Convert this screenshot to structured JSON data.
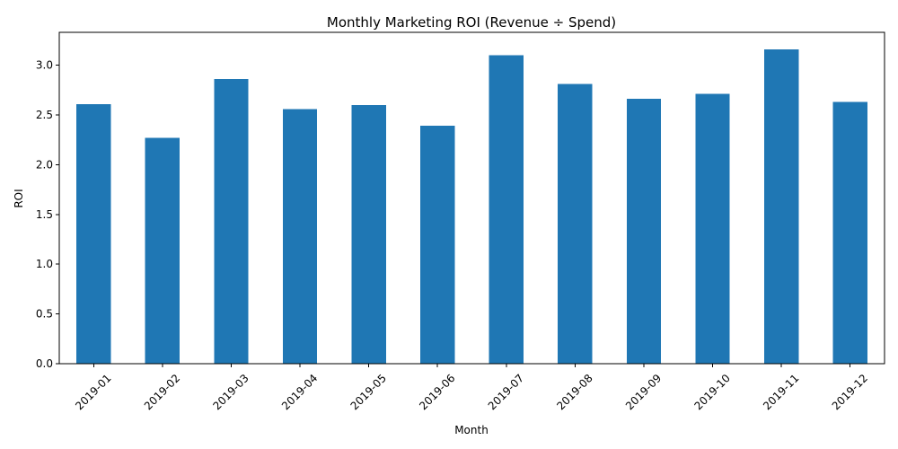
{
  "chart_data": {
    "type": "bar",
    "title": "Monthly Marketing ROI (Revenue ÷ Spend)",
    "xlabel": "Month",
    "ylabel": "ROI",
    "categories": [
      "2019-01",
      "2019-02",
      "2019-03",
      "2019-04",
      "2019-05",
      "2019-06",
      "2019-07",
      "2019-08",
      "2019-09",
      "2019-10",
      "2019-11",
      "2019-12"
    ],
    "values": [
      2.61,
      2.27,
      2.86,
      2.56,
      2.6,
      2.39,
      3.1,
      2.81,
      2.66,
      2.71,
      3.16,
      2.63
    ],
    "ylim": [
      0,
      3.33
    ],
    "yticks": [
      0.0,
      0.5,
      1.0,
      1.5,
      2.0,
      2.5,
      3.0
    ],
    "ytick_labels": [
      "0.0",
      "0.5",
      "1.0",
      "1.5",
      "2.0",
      "2.5",
      "3.0"
    ],
    "grid": false,
    "legend": "none",
    "bar_color": "#1f77b4"
  }
}
